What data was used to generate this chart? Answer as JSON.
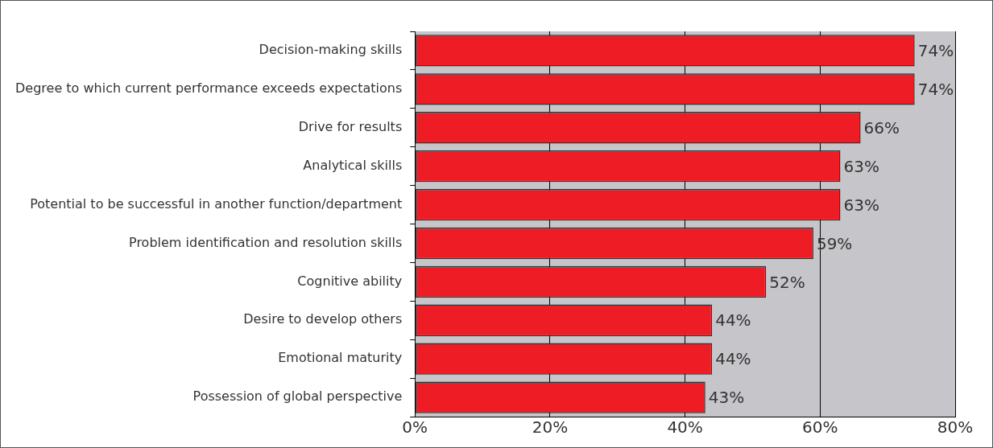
{
  "chart_data": {
    "type": "bar",
    "orientation": "horizontal",
    "categories": [
      "Decision-making skills",
      "Degree to which current performance exceeds expectations",
      "Drive for results",
      "Analytical skills",
      "Potential to be successful in another function/department",
      "Problem identification and resolution skills",
      "Cognitive ability",
      "Desire to develop others",
      "Emotional maturity",
      "Possession of global perspective"
    ],
    "values": [
      74,
      74,
      66,
      63,
      63,
      59,
      52,
      44,
      44,
      43
    ],
    "value_labels": [
      "74%",
      "74%",
      "66%",
      "63%",
      "63%",
      "59%",
      "52%",
      "44%",
      "44%",
      "43%"
    ],
    "color": "#ee1c25",
    "xlim": [
      0,
      80
    ],
    "xticks": [
      {
        "value": 0,
        "label": "0%"
      },
      {
        "value": 20,
        "label": "20%"
      },
      {
        "value": 40,
        "label": "40%"
      },
      {
        "value": 60,
        "label": "60%"
      },
      {
        "value": 80,
        "label": "80%"
      }
    ],
    "grid": "x",
    "legend": false
  }
}
